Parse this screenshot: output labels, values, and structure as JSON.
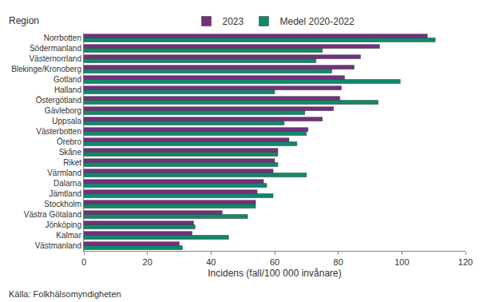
{
  "chart_data": {
    "type": "bar",
    "orientation": "horizontal",
    "ylabel": "Region",
    "xlabel": "Incidens (fall/100 000 invånare)",
    "annotations": [
      "Källa: Folkhälsomyndigheten"
    ],
    "categories": [
      "Norrbotten",
      "Södermanland",
      "Västernorrland",
      "Blekinge/Kronoberg",
      "Gotland",
      "Halland",
      "Östergötland",
      "Gävleborg",
      "Uppsala",
      "Västerbotten",
      "Örebro",
      "Skåne",
      "Riket",
      "Värmland",
      "Dalarna",
      "Jämtland",
      "Stockholm",
      "Västra Götaland",
      "Jönköping",
      "Kalmar",
      "Västmanland"
    ],
    "series": [
      {
        "name": "2023",
        "color": "#73307f",
        "values": [
          108,
          93,
          87,
          85,
          82,
          81,
          80.5,
          78.5,
          75,
          70.5,
          64.5,
          61,
          60,
          59.5,
          56.5,
          54.5,
          54,
          43.5,
          34.5,
          34,
          30
        ]
      },
      {
        "name": "Medel 2020-2022",
        "color": "#0e8a6b",
        "values": [
          110.5,
          75,
          73,
          78,
          99.5,
          60,
          92.5,
          69.5,
          63,
          70,
          67,
          61,
          61,
          70,
          57.5,
          59.5,
          54,
          51.5,
          35,
          45.5,
          31
        ]
      }
    ],
    "xlim": [
      0,
      120
    ],
    "xticks": [
      0,
      20,
      40,
      60,
      80,
      100,
      120
    ],
    "grid": false,
    "legend": "top"
  }
}
